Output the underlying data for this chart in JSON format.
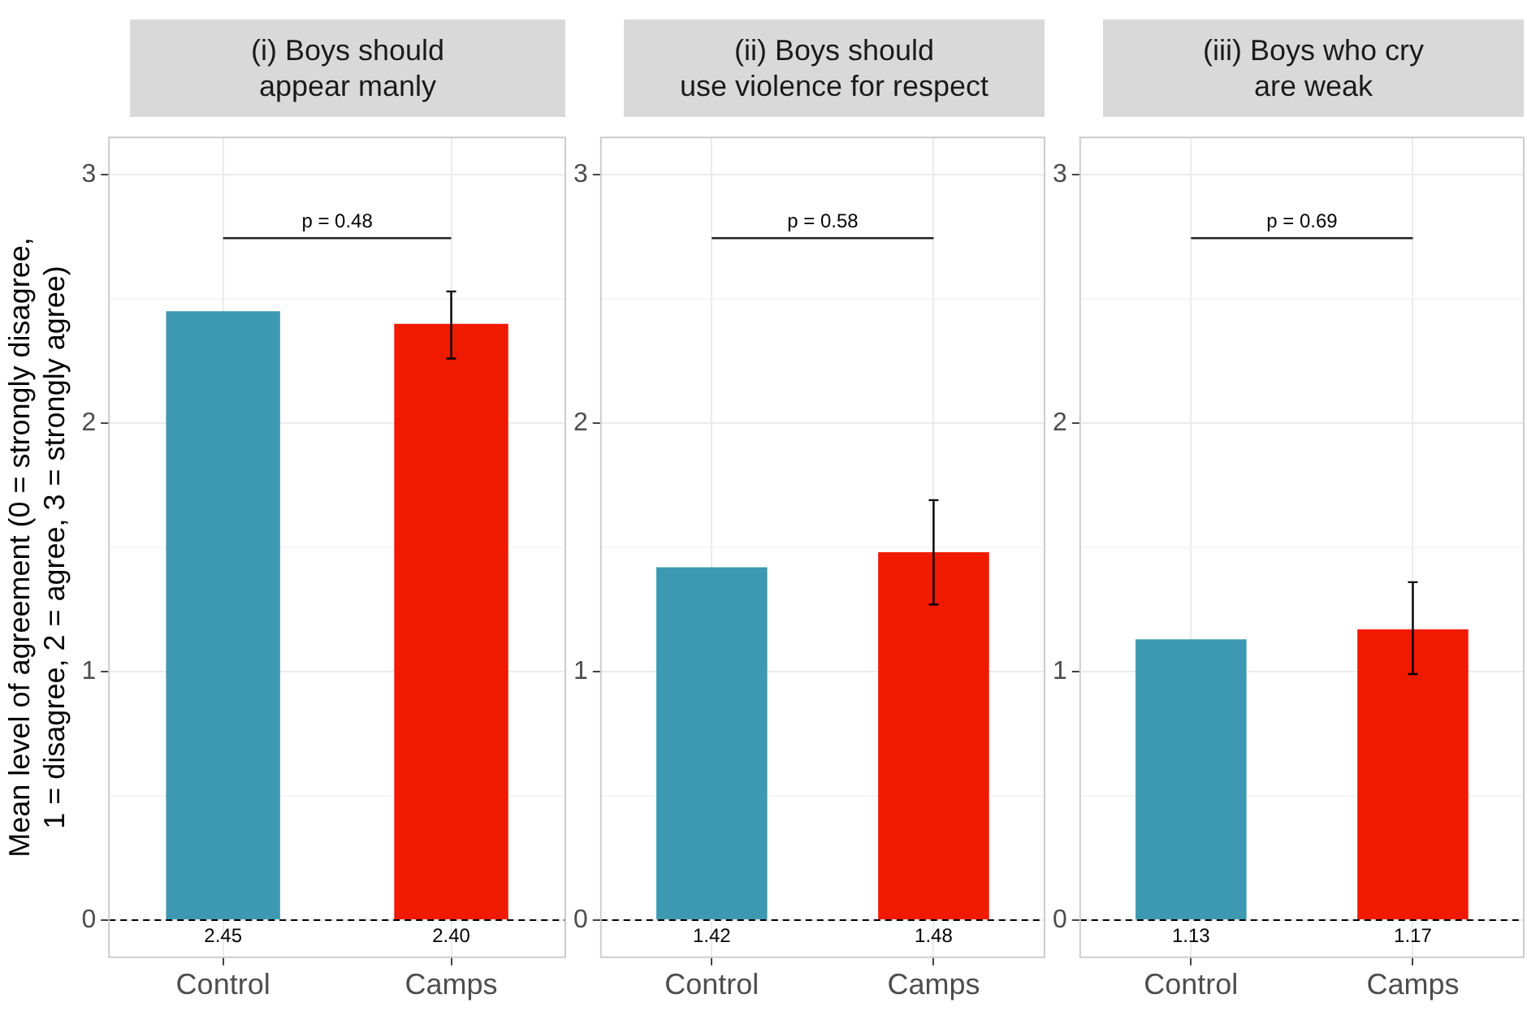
{
  "chart_data": [
    {
      "type": "bar",
      "title": "(i) Boys should\nappear manly",
      "ylabel": "Mean level of agreement (0 = strongly disagree,\n1 = disagree, 2 = agree, 3 = strongly agree)",
      "categories": [
        "Control",
        "Camps"
      ],
      "values": [
        2.45,
        2.4
      ],
      "colors": [
        "#3d99b2",
        "#f01a00"
      ],
      "errors": [
        null,
        [
          2.26,
          2.53
        ]
      ],
      "value_labels": [
        "2.45",
        "2.40"
      ],
      "ylim": [
        -0.15,
        3.15
      ],
      "yticks": [
        0,
        1,
        2,
        3
      ],
      "grid": true,
      "legend": false,
      "ref_lines": [
        {
          "axis": "y",
          "value": 0,
          "line_style": "dashed",
          "color": "#000000"
        }
      ],
      "annotations": [
        "p = 0.48"
      ]
    },
    {
      "type": "bar",
      "title": "(ii) Boys should\nuse violence for respect",
      "categories": [
        "Control",
        "Camps"
      ],
      "values": [
        1.42,
        1.48
      ],
      "colors": [
        "#3d99b2",
        "#f01a00"
      ],
      "errors": [
        null,
        [
          1.27,
          1.69
        ]
      ],
      "value_labels": [
        "1.42",
        "1.48"
      ],
      "ylim": [
        -0.15,
        3.15
      ],
      "yticks": [
        0,
        1,
        2,
        3
      ],
      "grid": true,
      "legend": false,
      "ref_lines": [
        {
          "axis": "y",
          "value": 0,
          "line_style": "dashed",
          "color": "#000000"
        }
      ],
      "annotations": [
        "p = 0.58"
      ]
    },
    {
      "type": "bar",
      "title": "(iii) Boys who cry\nare weak",
      "categories": [
        "Control",
        "Camps"
      ],
      "values": [
        1.13,
        1.17
      ],
      "colors": [
        "#3d99b2",
        "#f01a00"
      ],
      "errors": [
        null,
        [
          0.99,
          1.36
        ]
      ],
      "value_labels": [
        "1.13",
        "1.17"
      ],
      "ylim": [
        -0.15,
        3.15
      ],
      "yticks": [
        0,
        1,
        2,
        3
      ],
      "grid": true,
      "legend": false,
      "ref_lines": [
        {
          "axis": "y",
          "value": 0,
          "line_style": "dashed",
          "color": "#000000"
        }
      ],
      "annotations": [
        "p = 0.69"
      ]
    }
  ]
}
